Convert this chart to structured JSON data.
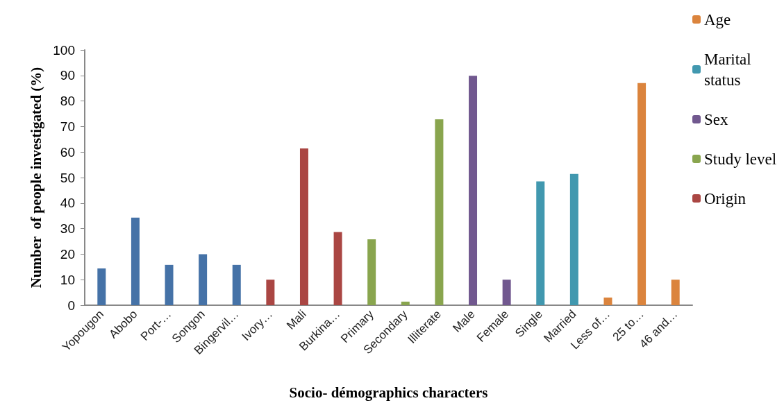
{
  "chart_data": {
    "type": "bar",
    "xlabel": "Socio- démographics characters",
    "ylabel": "Number  of people investigated (%)",
    "categories": [
      "Yopougon",
      "Abobo",
      "Port-…",
      "Songon",
      "Bingervil…",
      "Ivory…",
      "Mali",
      "Burkina…",
      "Primary",
      "Secondary",
      "Illiterate",
      "Male",
      "Female",
      "Single",
      "Married",
      "Less of…",
      "25 to…",
      "46 and…"
    ],
    "series": [
      {
        "name": "Age",
        "color": "#db843d",
        "values": [
          null,
          null,
          null,
          null,
          null,
          null,
          null,
          null,
          null,
          null,
          null,
          null,
          null,
          null,
          null,
          3.0,
          87.0,
          10.0
        ]
      },
      {
        "name": "Marital status",
        "color": "#4198af",
        "values": [
          null,
          null,
          null,
          null,
          null,
          null,
          null,
          null,
          null,
          null,
          null,
          null,
          null,
          48.5,
          51.4,
          null,
          null,
          null
        ]
      },
      {
        "name": "Sex",
        "color": "#71588f",
        "values": [
          null,
          null,
          null,
          null,
          null,
          null,
          null,
          null,
          null,
          null,
          null,
          89.9,
          10.0,
          null,
          null,
          null,
          null,
          null
        ]
      },
      {
        "name": "Study level",
        "color": "#89a54e",
        "values": [
          null,
          null,
          null,
          null,
          null,
          null,
          null,
          null,
          25.8,
          1.4,
          72.8,
          null,
          null,
          null,
          null,
          null,
          null,
          null
        ]
      },
      {
        "name": "Origin",
        "color": "#aa4643",
        "values": [
          null,
          null,
          null,
          null,
          null,
          10.0,
          61.4,
          28.7,
          null,
          null,
          null,
          null,
          null,
          null,
          null,
          null,
          null,
          null
        ]
      },
      {
        "color": "#4572a7",
        "values": [
          14.4,
          34.3,
          15.8,
          20.0,
          15.8,
          null,
          null,
          null,
          null,
          null,
          null,
          null,
          null,
          null,
          null,
          null,
          null,
          null
        ]
      }
    ],
    "ylim": [
      0,
      100
    ],
    "yticks": [
      0,
      10,
      20,
      30,
      40,
      50,
      60,
      70,
      80,
      90,
      100
    ],
    "grid": false,
    "legend": "top right"
  }
}
